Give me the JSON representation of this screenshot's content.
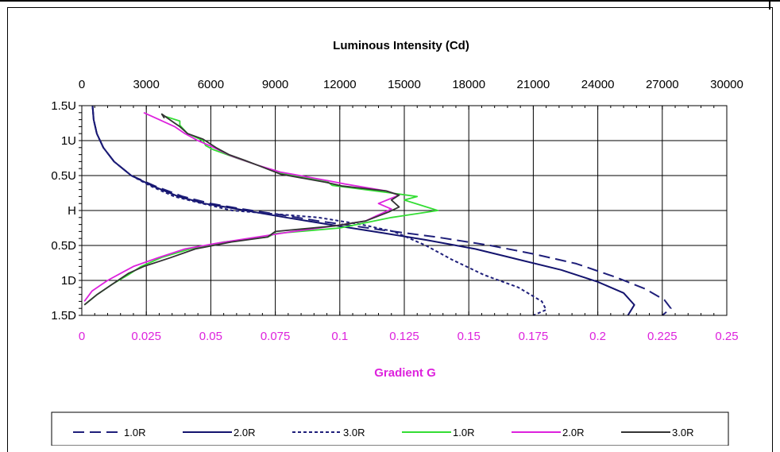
{
  "chart_data": {
    "type": "line",
    "top_axis": {
      "title": "Luminous Intensity (Cd)",
      "ticks": [
        "0",
        "3000",
        "6000",
        "9000",
        "12000",
        "15000",
        "18000",
        "21000",
        "24000",
        "27000",
        "30000"
      ],
      "range": [
        0,
        30000
      ]
    },
    "bottom_axis": {
      "title": "Gradient G",
      "ticks": [
        "0",
        "0.025",
        "0.05",
        "0.075",
        "0.1",
        "0.125",
        "0.15",
        "0.175",
        "0.2",
        "0.225",
        "0.25"
      ],
      "range": [
        0,
        0.25
      ]
    },
    "y_axis": {
      "ticks": [
        "1.5U",
        "1U",
        "0.5U",
        "H",
        "0.5D",
        "1D",
        "1.5D"
      ],
      "values": [
        1.5,
        1,
        0.5,
        0,
        -0.5,
        -1,
        -1.5
      ],
      "range": [
        -1.5,
        1.5
      ]
    },
    "grid": true,
    "legend_position": "bottom",
    "series": [
      {
        "name": "1.0R",
        "axis": "top",
        "color": "#1f1f7a",
        "dash": "long",
        "points": [
          [
            500,
            1.5
          ],
          [
            550,
            1.3
          ],
          [
            700,
            1.1
          ],
          [
            1000,
            0.9
          ],
          [
            1500,
            0.7
          ],
          [
            2300,
            0.5
          ],
          [
            3400,
            0.35
          ],
          [
            4700,
            0.2
          ],
          [
            6000,
            0.1
          ],
          [
            7300,
            0.03
          ],
          [
            9000,
            -0.05
          ],
          [
            11000,
            -0.15
          ],
          [
            14000,
            -0.28
          ],
          [
            16500,
            -0.38
          ],
          [
            19000,
            -0.5
          ],
          [
            21000,
            -0.62
          ],
          [
            23000,
            -0.76
          ],
          [
            24800,
            -0.95
          ],
          [
            26200,
            -1.12
          ],
          [
            27100,
            -1.28
          ],
          [
            27400,
            -1.4
          ],
          [
            27000,
            -1.5
          ]
        ]
      },
      {
        "name": "2.0R",
        "axis": "top",
        "color": "#14146e",
        "dash": "solid",
        "points": [
          [
            500,
            1.5
          ],
          [
            550,
            1.3
          ],
          [
            700,
            1.1
          ],
          [
            1000,
            0.9
          ],
          [
            1500,
            0.7
          ],
          [
            2300,
            0.5
          ],
          [
            3300,
            0.35
          ],
          [
            4500,
            0.2
          ],
          [
            5700,
            0.1
          ],
          [
            6700,
            0.05
          ],
          [
            8000,
            -0.02
          ],
          [
            9500,
            -0.1
          ],
          [
            11500,
            -0.2
          ],
          [
            14000,
            -0.32
          ],
          [
            16000,
            -0.42
          ],
          [
            18300,
            -0.55
          ],
          [
            20300,
            -0.7
          ],
          [
            22300,
            -0.85
          ],
          [
            24000,
            -1.02
          ],
          [
            25200,
            -1.18
          ],
          [
            25700,
            -1.35
          ],
          [
            25400,
            -1.5
          ]
        ]
      },
      {
        "name": "3.0R",
        "axis": "top",
        "color": "#1f1f7a",
        "dash": "short",
        "points": [
          [
            500,
            1.5
          ],
          [
            550,
            1.3
          ],
          [
            700,
            1.1
          ],
          [
            1000,
            0.9
          ],
          [
            1500,
            0.7
          ],
          [
            2300,
            0.5
          ],
          [
            3200,
            0.35
          ],
          [
            4300,
            0.2
          ],
          [
            5600,
            0.1
          ],
          [
            7000,
            0.0
          ],
          [
            9000,
            -0.05
          ],
          [
            11000,
            -0.1
          ],
          [
            13000,
            -0.2
          ],
          [
            14500,
            -0.3
          ],
          [
            16000,
            -0.5
          ],
          [
            17200,
            -0.7
          ],
          [
            18700,
            -0.92
          ],
          [
            20300,
            -1.1
          ],
          [
            21400,
            -1.3
          ],
          [
            21600,
            -1.42
          ],
          [
            21000,
            -1.5
          ]
        ]
      },
      {
        "name": "1.0R",
        "axis": "bottom",
        "color": "#33dd33",
        "dash": "solid",
        "points": [
          [
            0.031,
            1.38
          ],
          [
            0.032,
            1.35
          ],
          [
            0.038,
            1.28
          ],
          [
            0.038,
            1.22
          ],
          [
            0.041,
            1.1
          ],
          [
            0.047,
            1.0
          ],
          [
            0.048,
            0.93
          ],
          [
            0.051,
            0.87
          ],
          [
            0.06,
            0.75
          ],
          [
            0.068,
            0.65
          ],
          [
            0.078,
            0.53
          ],
          [
            0.095,
            0.42
          ],
          [
            0.097,
            0.36
          ],
          [
            0.12,
            0.25
          ],
          [
            0.13,
            0.2
          ],
          [
            0.125,
            0.15
          ],
          [
            0.138,
            0.0
          ],
          [
            0.12,
            -0.1
          ],
          [
            0.1,
            -0.25
          ],
          [
            0.075,
            -0.33
          ],
          [
            0.072,
            -0.38
          ],
          [
            0.055,
            -0.45
          ],
          [
            0.042,
            -0.55
          ],
          [
            0.031,
            -0.67
          ],
          [
            0.023,
            -0.8
          ],
          [
            0.018,
            -0.92
          ],
          [
            0.012,
            -1.05
          ],
          [
            0.006,
            -1.2
          ],
          [
            0.001,
            -1.35
          ]
        ]
      },
      {
        "name": "2.0R",
        "axis": "bottom",
        "color": "#dd22dd",
        "dash": "solid",
        "points": [
          [
            0.024,
            1.4
          ],
          [
            0.03,
            1.3
          ],
          [
            0.036,
            1.2
          ],
          [
            0.04,
            1.1
          ],
          [
            0.045,
            1.0
          ],
          [
            0.05,
            0.92
          ],
          [
            0.058,
            0.78
          ],
          [
            0.068,
            0.65
          ],
          [
            0.077,
            0.55
          ],
          [
            0.095,
            0.43
          ],
          [
            0.102,
            0.38
          ],
          [
            0.118,
            0.28
          ],
          [
            0.123,
            0.22
          ],
          [
            0.115,
            0.1
          ],
          [
            0.12,
            0.02
          ],
          [
            0.114,
            -0.08
          ],
          [
            0.11,
            -0.15
          ],
          [
            0.098,
            -0.22
          ],
          [
            0.082,
            -0.3
          ],
          [
            0.068,
            -0.38
          ],
          [
            0.052,
            -0.47
          ],
          [
            0.04,
            -0.55
          ],
          [
            0.03,
            -0.67
          ],
          [
            0.02,
            -0.8
          ],
          [
            0.015,
            -0.9
          ],
          [
            0.01,
            -1.0
          ],
          [
            0.004,
            -1.15
          ],
          [
            0.001,
            -1.3
          ]
        ]
      },
      {
        "name": "3.0R",
        "axis": "bottom",
        "color": "#333333",
        "dash": "solid",
        "points": [
          [
            0.032,
            1.32
          ],
          [
            0.031,
            1.38
          ],
          [
            0.036,
            1.25
          ],
          [
            0.038,
            1.2
          ],
          [
            0.041,
            1.1
          ],
          [
            0.047,
            1.02
          ],
          [
            0.052,
            0.9
          ],
          [
            0.057,
            0.8
          ],
          [
            0.063,
            0.72
          ],
          [
            0.068,
            0.65
          ],
          [
            0.077,
            0.52
          ],
          [
            0.095,
            0.4
          ],
          [
            0.101,
            0.35
          ],
          [
            0.118,
            0.28
          ],
          [
            0.123,
            0.22
          ],
          [
            0.12,
            0.15
          ],
          [
            0.123,
            0.05
          ],
          [
            0.119,
            -0.02
          ],
          [
            0.11,
            -0.15
          ],
          [
            0.098,
            -0.22
          ],
          [
            0.075,
            -0.3
          ],
          [
            0.072,
            -0.38
          ],
          [
            0.058,
            -0.45
          ],
          [
            0.044,
            -0.55
          ],
          [
            0.034,
            -0.68
          ],
          [
            0.024,
            -0.8
          ],
          [
            0.018,
            -0.9
          ],
          [
            0.012,
            -1.05
          ],
          [
            0.006,
            -1.2
          ],
          [
            0.001,
            -1.35
          ]
        ]
      }
    ]
  }
}
